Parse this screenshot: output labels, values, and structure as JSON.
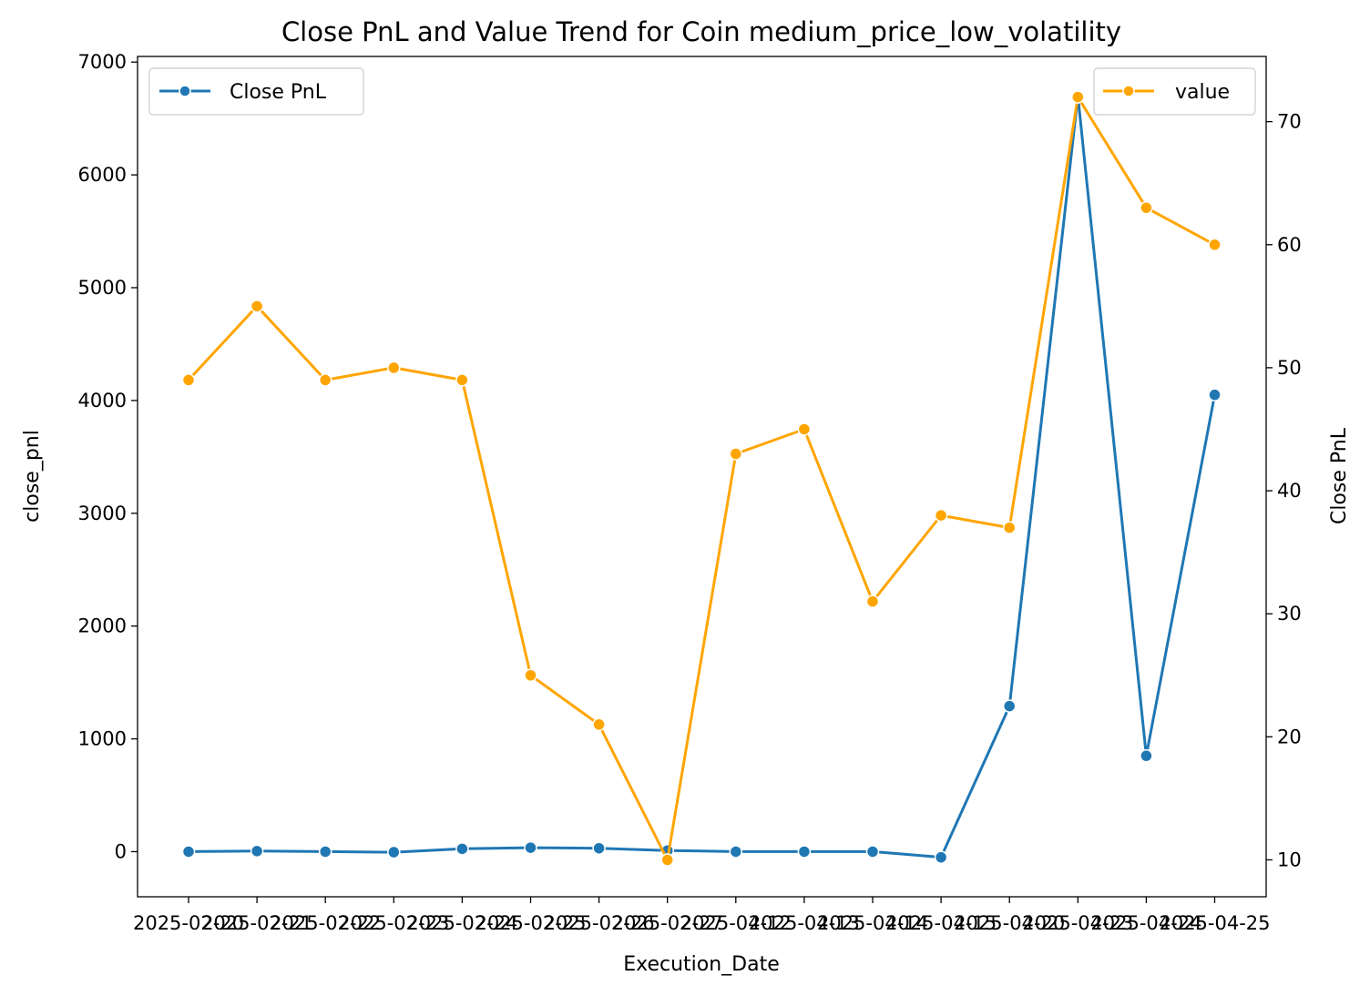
{
  "chart_data": {
    "type": "line",
    "title": "Close PnL and Value Trend for Coin medium_price_low_volatility",
    "xlabel": "Execution_Date",
    "ylabel_left": "close_pnl",
    "ylabel_right": "Close PnL",
    "x_tick_labels": [
      "2025-02-20",
      "2025-02-21",
      "2025-02-22",
      "2025-02-23",
      "2025-02-24",
      "2025-02-25",
      "2025-02-26",
      "2025-02-27",
      "2025-04-12",
      "2025-04-13",
      "2025-04-14",
      "2025-04-15",
      "2025-04-20",
      "2025-04-23",
      "2025-04-24",
      "2025-04-25"
    ],
    "left_axis": {
      "ylim": [
        -400,
        7050
      ],
      "ticks": [
        0,
        1000,
        2000,
        3000,
        4000,
        5000,
        6000,
        7000
      ]
    },
    "right_axis": {
      "ylim": [
        7,
        75.3
      ],
      "ticks": [
        10,
        20,
        30,
        40,
        50,
        60,
        70
      ]
    },
    "series": [
      {
        "name": "Close PnL",
        "axis": "left",
        "color": "#1f77b4",
        "legend_position": "upper-left",
        "values": [
          0,
          5,
          0,
          -5,
          25,
          35,
          30,
          10,
          0,
          0,
          0,
          -50,
          1290,
          6700,
          850,
          4050
        ]
      },
      {
        "name": "value",
        "axis": "right",
        "color": "#ffa500",
        "legend_position": "upper-right",
        "values": [
          49,
          55,
          49,
          50,
          49,
          25,
          21,
          10,
          43,
          45,
          31,
          38,
          37,
          72,
          63,
          60
        ]
      }
    ]
  }
}
